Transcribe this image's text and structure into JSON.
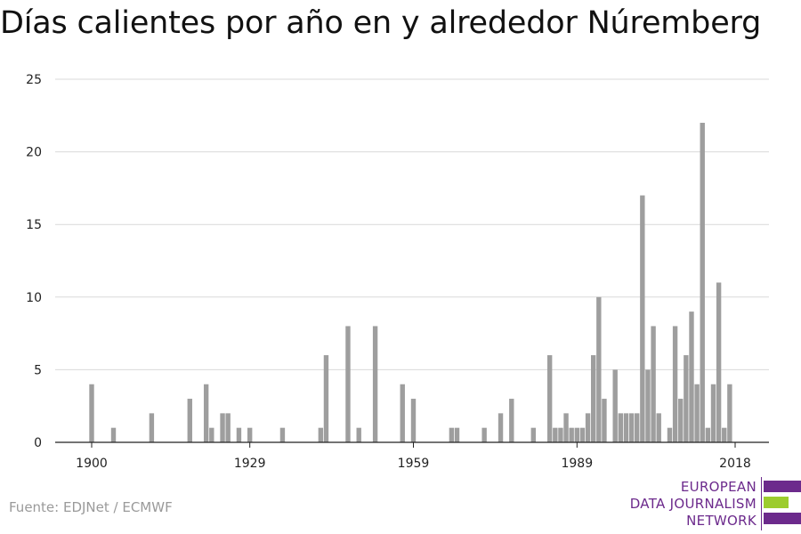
{
  "title": "Días calientes por año en y alrededor Núremberg",
  "source": "Fuente: EDJNet / ECMWF",
  "logo": {
    "lines": [
      "EUROPEAN",
      "DATA JOURNALISM",
      "NETWORK"
    ],
    "colors": [
      "#6c2a8c",
      "#9ccc2e",
      "#6c2a8c"
    ]
  },
  "colors": {
    "bar": "#9e9e9e",
    "grid": "#d9d9d9",
    "axis": "#222222"
  },
  "chart_data": {
    "type": "bar",
    "title": "Días calientes por año en y alrededor Núremberg",
    "xlabel": "",
    "ylabel": "",
    "ylim": [
      0,
      25
    ],
    "yticks": [
      0,
      5,
      10,
      15,
      20,
      25
    ],
    "xticks": [
      1900,
      1929,
      1959,
      1989,
      2018
    ],
    "xrange": [
      1900,
      2018
    ],
    "grid": true,
    "series": [
      {
        "x": [
          1900,
          1904,
          1911,
          1918,
          1921,
          1922,
          1924,
          1925,
          1927,
          1929,
          1935,
          1942,
          1943,
          1947,
          1949,
          1952,
          1957,
          1959,
          1966,
          1967,
          1972,
          1975,
          1977,
          1981,
          1984,
          1985,
          1986,
          1987,
          1988,
          1989,
          1990,
          1991,
          1992,
          1993,
          1994,
          1996,
          1997,
          1998,
          1999,
          2000,
          2001,
          2002,
          2003,
          2004,
          2006,
          2007,
          2008,
          2009,
          2010,
          2011,
          2012,
          2013,
          2014,
          2015,
          2016,
          2017
        ],
        "values": [
          4,
          1,
          2,
          3,
          4,
          1,
          2,
          2,
          1,
          1,
          1,
          1,
          6,
          8,
          1,
          8,
          4,
          3,
          1,
          1,
          1,
          2,
          3,
          1,
          6,
          1,
          1,
          2,
          1,
          1,
          1,
          2,
          6,
          10,
          3,
          5,
          2,
          2,
          2,
          2,
          17,
          5,
          8,
          2,
          1,
          8,
          3,
          6,
          9,
          4,
          22,
          1,
          4,
          11,
          1,
          4
        ]
      }
    ]
  }
}
